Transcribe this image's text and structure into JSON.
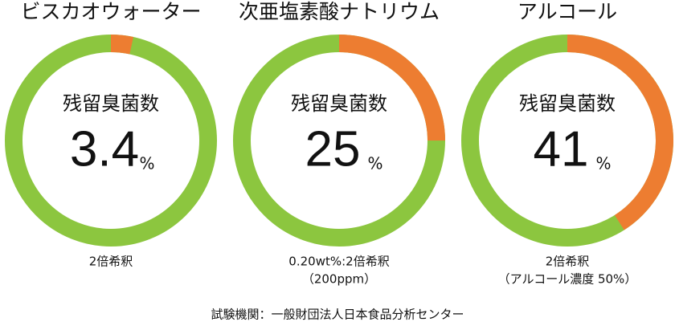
{
  "chart_data": [
    {
      "type": "donut",
      "title": "ビスカオウォーター",
      "center_label": "残留臭菌数",
      "value": 3.4,
      "unit": "%",
      "note": [
        "2倍希釈"
      ],
      "color": "#ed7d31",
      "base_color": "#8cc63f"
    },
    {
      "type": "donut",
      "title": "次亜塩素酸ナトリウム",
      "center_label": "残留臭菌数",
      "value": 25,
      "unit": "%",
      "note": [
        "0.20wt%:2倍希釈",
        "（200ppm）"
      ],
      "color": "#ed7d31",
      "base_color": "#8cc63f"
    },
    {
      "type": "donut",
      "title": "アルコール",
      "center_label": "残留臭菌数",
      "value": 41,
      "unit": "%",
      "note": [
        "2倍希釈",
        "（アルコール濃度 50%）"
      ],
      "color": "#ed7d31",
      "base_color": "#8cc63f"
    }
  ],
  "footer": "試験機関：一般財団法人日本食品分析センター"
}
